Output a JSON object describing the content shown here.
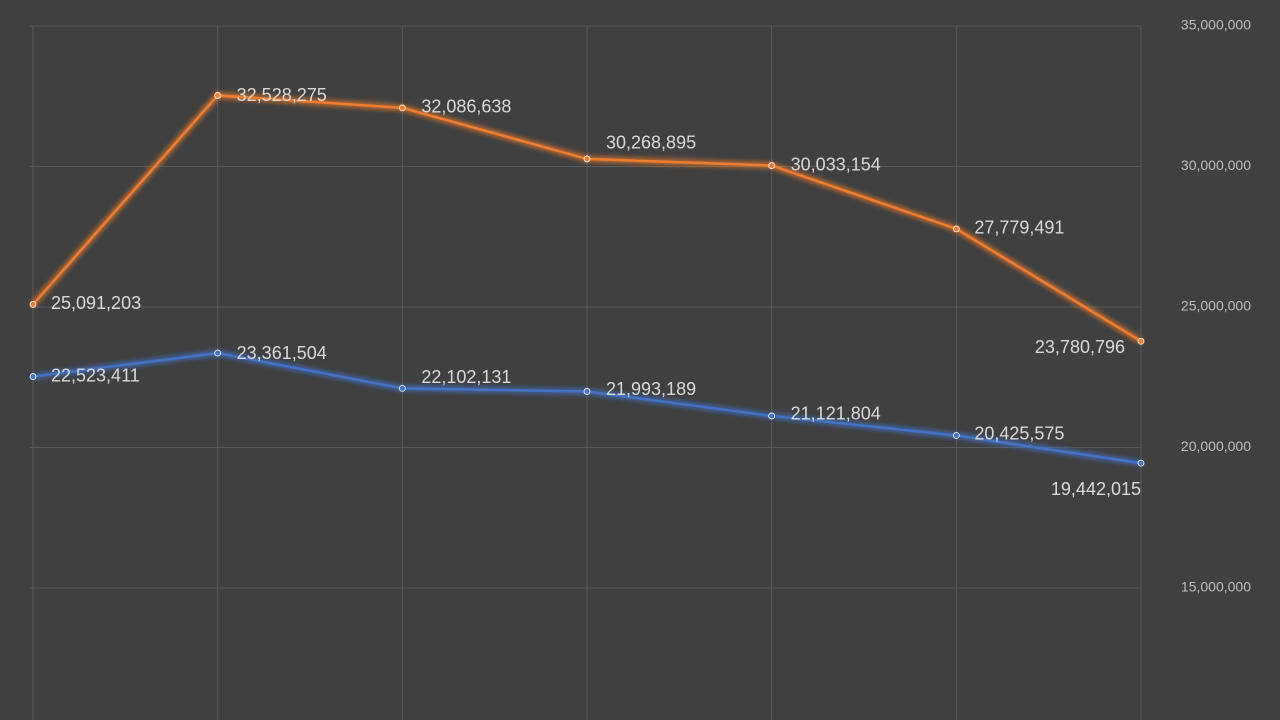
{
  "chart_data": {
    "type": "line",
    "categories": [
      null,
      null,
      null,
      null,
      null,
      null,
      null
    ],
    "series": [
      {
        "color": "#ed7d31",
        "values": [
          25091203,
          32528275,
          32086638,
          30268895,
          30033154,
          27779491,
          23780796
        ],
        "value_labels": [
          "25,091,203",
          "32,528,275",
          "32,086,638",
          "30,268,895",
          "30,033,154",
          "27,779,491",
          "23,780,796"
        ]
      },
      {
        "color": "#4472c4",
        "values": [
          22523411,
          23361504,
          22102131,
          21993189,
          21121804,
          20425575,
          19442015
        ],
        "value_labels": [
          "22,523,411",
          "23,361,504",
          "22,102,131",
          "21,993,189",
          "21,121,804",
          "20,425,575",
          "19,442,015"
        ]
      }
    ],
    "ylim": [
      10300000,
      35000000
    ],
    "yticks": [
      {
        "value": 15000000,
        "label": "15,000,000"
      },
      {
        "value": 20000000,
        "label": "20,000,000"
      },
      {
        "value": 25000000,
        "label": "25,000,000"
      },
      {
        "value": 30000000,
        "label": "30,000,000"
      },
      {
        "value": 35000000,
        "label": "35,000,000"
      }
    ],
    "grid": true,
    "y_axis_side": "right",
    "background": "#404040"
  }
}
